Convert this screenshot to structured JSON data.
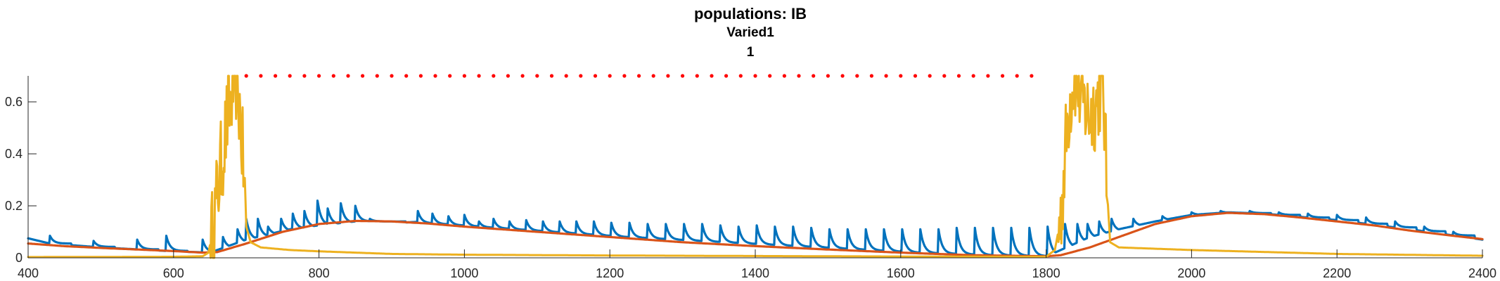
{
  "chart_data": {
    "type": "line",
    "title": "populations: IB",
    "subtitle": "Varied1",
    "subtitle2": "1",
    "xlabel": "",
    "ylabel": "",
    "xlim": [
      400,
      2400
    ],
    "ylim": [
      0,
      0.7
    ],
    "x_ticks": [
      400,
      600,
      800,
      1000,
      1200,
      1400,
      1600,
      1800,
      2000,
      2200,
      2400
    ],
    "x_tick_labels": [
      "400",
      "600",
      "800",
      "1000",
      "1200",
      "1400",
      "1600",
      "1800",
      "2000",
      "2200",
      "2400"
    ],
    "y_ticks": [
      0,
      0.2,
      0.4,
      0.6
    ],
    "y_tick_labels": [
      "0",
      "0.2",
      "0.4",
      "0.6"
    ],
    "grid": false,
    "legend": "none",
    "series": [
      {
        "color": "#0072BD",
        "style": "spiking",
        "baseline_points": [
          [
            400,
            0.075
          ],
          [
            430,
            0.055
          ],
          [
            500,
            0.04
          ],
          [
            600,
            0.025
          ],
          [
            650,
            0.02
          ],
          [
            700,
            0.07
          ],
          [
            760,
            0.11
          ],
          [
            800,
            0.125
          ],
          [
            850,
            0.14
          ],
          [
            900,
            0.14
          ],
          [
            1000,
            0.12
          ],
          [
            1100,
            0.1
          ],
          [
            1200,
            0.08
          ],
          [
            1300,
            0.065
          ],
          [
            1400,
            0.05
          ],
          [
            1500,
            0.035
          ],
          [
            1600,
            0.02
          ],
          [
            1700,
            0.01
          ],
          [
            1800,
            0.005
          ],
          [
            1820,
            0.03
          ],
          [
            1860,
            0.08
          ],
          [
            1900,
            0.11
          ],
          [
            1950,
            0.14
          ],
          [
            2000,
            0.165
          ],
          [
            2050,
            0.175
          ],
          [
            2100,
            0.17
          ],
          [
            2200,
            0.145
          ],
          [
            2300,
            0.11
          ],
          [
            2400,
            0.07
          ]
        ],
        "spike_times": [
          430,
          490,
          550,
          590,
          640,
          668,
          688,
          700,
          716,
          730,
          748,
          764,
          780,
          798,
          812,
          830,
          850,
          870,
          890,
          910,
          936,
          956,
          978,
          1000,
          1020,
          1040,
          1062,
          1085,
          1108,
          1131,
          1154,
          1178,
          1202,
          1227,
          1252,
          1277,
          1302,
          1327,
          1352,
          1377,
          1402,
          1427,
          1452,
          1477,
          1502,
          1527,
          1552,
          1577,
          1602,
          1627,
          1652,
          1677,
          1702,
          1727,
          1752,
          1777,
          1802,
          1826,
          1843,
          1857,
          1873,
          1890,
          1920,
          1960,
          2000,
          2040,
          2080,
          2120,
          2160,
          2200,
          2240,
          2280,
          2320,
          2360
        ],
        "spike_peaks": [
          0.085,
          0.065,
          0.07,
          0.085,
          0.07,
          0.08,
          0.11,
          0.15,
          0.15,
          0.12,
          0.15,
          0.17,
          0.18,
          0.22,
          0.19,
          0.21,
          0.2,
          0.15,
          0.13,
          0.12,
          0.18,
          0.17,
          0.16,
          0.165,
          0.14,
          0.15,
          0.14,
          0.145,
          0.14,
          0.14,
          0.14,
          0.14,
          0.135,
          0.135,
          0.13,
          0.13,
          0.13,
          0.13,
          0.125,
          0.12,
          0.125,
          0.12,
          0.12,
          0.115,
          0.11,
          0.11,
          0.11,
          0.11,
          0.11,
          0.11,
          0.11,
          0.115,
          0.115,
          0.115,
          0.115,
          0.115,
          0.12,
          0.13,
          0.13,
          0.13,
          0.14,
          0.15,
          0.15,
          0.16,
          0.175,
          0.18,
          0.18,
          0.175,
          0.17,
          0.165,
          0.155,
          0.14,
          0.12,
          0.1
        ]
      },
      {
        "color": "#D95319",
        "style": "smooth",
        "points": [
          [
            400,
            0.055
          ],
          [
            450,
            0.045
          ],
          [
            500,
            0.038
          ],
          [
            550,
            0.032
          ],
          [
            600,
            0.026
          ],
          [
            640,
            0.02
          ],
          [
            660,
            0.022
          ],
          [
            700,
            0.055
          ],
          [
            750,
            0.1
          ],
          [
            800,
            0.13
          ],
          [
            850,
            0.142
          ],
          [
            900,
            0.14
          ],
          [
            950,
            0.132
          ],
          [
            1000,
            0.12
          ],
          [
            1100,
            0.1
          ],
          [
            1200,
            0.08
          ],
          [
            1300,
            0.06
          ],
          [
            1400,
            0.045
          ],
          [
            1500,
            0.032
          ],
          [
            1600,
            0.02
          ],
          [
            1700,
            0.01
          ],
          [
            1800,
            0.006
          ],
          [
            1820,
            0.01
          ],
          [
            1860,
            0.04
          ],
          [
            1900,
            0.08
          ],
          [
            1950,
            0.13
          ],
          [
            2000,
            0.16
          ],
          [
            2050,
            0.173
          ],
          [
            2100,
            0.168
          ],
          [
            2150,
            0.155
          ],
          [
            2200,
            0.14
          ],
          [
            2250,
            0.125
          ],
          [
            2300,
            0.105
          ],
          [
            2350,
            0.088
          ],
          [
            2400,
            0.072
          ]
        ]
      },
      {
        "color": "#EDB120",
        "style": "bursting",
        "points": [
          [
            400,
            0.003
          ],
          [
            600,
            0.004
          ],
          [
            640,
            0.006
          ],
          [
            648,
            0.02
          ],
          [
            655,
            0.12
          ],
          [
            660,
            0.25
          ],
          [
            665,
            0.35
          ],
          [
            670,
            0.45
          ],
          [
            675,
            0.55
          ],
          [
            680,
            0.62
          ],
          [
            685,
            0.72
          ],
          [
            690,
            0.6
          ],
          [
            695,
            0.4
          ],
          [
            700,
            0.12
          ],
          [
            706,
            0.06
          ],
          [
            720,
            0.04
          ],
          [
            760,
            0.03
          ],
          [
            800,
            0.025
          ],
          [
            850,
            0.02
          ],
          [
            900,
            0.015
          ],
          [
            1000,
            0.012
          ],
          [
            1200,
            0.009
          ],
          [
            1400,
            0.007
          ],
          [
            1600,
            0.005
          ],
          [
            1800,
            0.004
          ],
          [
            1812,
            0.03
          ],
          [
            1820,
            0.15
          ],
          [
            1825,
            0.35
          ],
          [
            1830,
            0.55
          ],
          [
            1835,
            0.65
          ],
          [
            1840,
            0.7
          ],
          [
            1850,
            0.6
          ],
          [
            1860,
            0.55
          ],
          [
            1870,
            0.6
          ],
          [
            1878,
            0.7
          ],
          [
            1883,
            0.3
          ],
          [
            1888,
            0.06
          ],
          [
            1900,
            0.04
          ],
          [
            1950,
            0.035
          ],
          [
            2000,
            0.03
          ],
          [
            2200,
            0.015
          ],
          [
            2400,
            0.008
          ]
        ],
        "noise_amplitude": 0.06
      },
      {
        "color": "#FF0000",
        "style": "dotted",
        "y": 0.7,
        "x": [
          700,
          1790
        ],
        "dot_spacing": 20
      }
    ]
  }
}
